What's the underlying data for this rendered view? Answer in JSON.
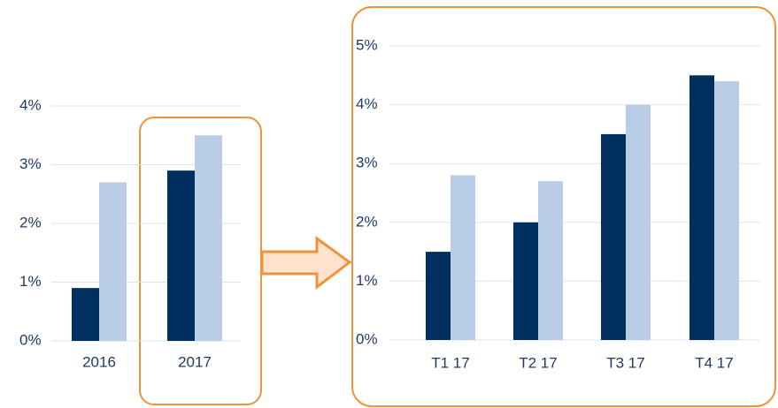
{
  "chart_data": [
    {
      "type": "bar",
      "categories": [
        "2016",
        "2017"
      ],
      "series": [
        {
          "color": "#00305f",
          "values": [
            0.9,
            2.9
          ]
        },
        {
          "color": "#b9cde6",
          "values": [
            2.7,
            3.5
          ]
        }
      ],
      "ylim": [
        0,
        4
      ],
      "yticks": [
        {
          "value": 0,
          "label": "0%"
        },
        {
          "value": 1,
          "label": "1%"
        },
        {
          "value": 2,
          "label": "2%"
        },
        {
          "value": 3,
          "label": "3%"
        },
        {
          "value": 4,
          "label": "4%"
        }
      ],
      "grid": true
    },
    {
      "type": "bar",
      "categories": [
        "T1 17",
        "T2 17",
        "T3 17",
        "T4 17"
      ],
      "series": [
        {
          "color": "#00305f",
          "values": [
            1.5,
            2.0,
            3.5,
            4.5
          ]
        },
        {
          "color": "#b9cde6",
          "values": [
            2.8,
            2.7,
            4.0,
            4.4
          ]
        }
      ],
      "ylim": [
        0,
        5
      ],
      "yticks": [
        {
          "value": 0,
          "label": "0%"
        },
        {
          "value": 1,
          "label": "1%"
        },
        {
          "value": 2,
          "label": "2%"
        },
        {
          "value": 3,
          "label": "3%"
        },
        {
          "value": 4,
          "label": "4%"
        },
        {
          "value": 5,
          "label": "5%"
        }
      ],
      "grid": true
    }
  ]
}
